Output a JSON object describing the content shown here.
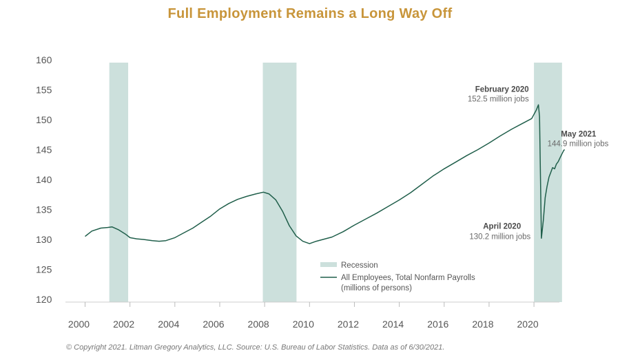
{
  "title": "Full Employment Remains a Long Way Off",
  "footer": "© Copyright 2021. Litman Gregory Analytics, LLC. Source: U.S. Bureau of Labor Statistics. Data as of 6/30/2021.",
  "colors": {
    "title": "#c8953a",
    "line": "#1f5e4a",
    "recession": "#cce0dc"
  },
  "chart_data": {
    "type": "line",
    "title": "Full Employment Remains a Long Way Off",
    "xlabel": "",
    "ylabel": "",
    "xlim": [
      1999.6,
      2021.3
    ],
    "ylim": [
      120,
      160
    ],
    "x_ticks": [
      2000,
      2002,
      2004,
      2006,
      2008,
      2010,
      2012,
      2014,
      2016,
      2018,
      2020
    ],
    "y_ticks": [
      160,
      155,
      150,
      145,
      140,
      135,
      130,
      125,
      120
    ],
    "grid": false,
    "legend_position": "bottom-right",
    "recessions": [
      [
        2001.08,
        2001.92
      ],
      [
        2007.92,
        2009.42
      ],
      [
        2020.0,
        2021.25
      ]
    ],
    "legend": {
      "recession_label": "Recession",
      "series_label": "All Employees, Total Nonfarm Payrolls",
      "series_label_2": "(millions of persons)"
    },
    "series": [
      {
        "name": "All Employees, Total Nonfarm Payrolls (millions of persons)",
        "x": [
          2000.0,
          2000.3,
          2000.7,
          2001.0,
          2001.2,
          2001.5,
          2001.8,
          2002.0,
          2002.3,
          2002.6,
          2003.0,
          2003.3,
          2003.6,
          2004.0,
          2004.4,
          2004.8,
          2005.2,
          2005.6,
          2006.0,
          2006.4,
          2006.8,
          2007.2,
          2007.6,
          2007.95,
          2008.2,
          2008.5,
          2008.8,
          2009.1,
          2009.4,
          2009.7,
          2010.0,
          2010.3,
          2010.6,
          2011.0,
          2011.5,
          2012.0,
          2012.5,
          2013.0,
          2013.5,
          2014.0,
          2014.5,
          2015.0,
          2015.5,
          2016.0,
          2016.5,
          2017.0,
          2017.5,
          2018.0,
          2018.5,
          2019.0,
          2019.5,
          2019.9,
          2020.1,
          2020.2,
          2020.25,
          2020.33,
          2020.42,
          2020.5,
          2020.58,
          2020.67,
          2020.75,
          2020.83,
          2020.92,
          2021.0,
          2021.08,
          2021.17,
          2021.25,
          2021.33,
          2021.37
        ],
        "values": [
          130.5,
          131.4,
          131.9,
          132.0,
          132.1,
          131.6,
          130.9,
          130.3,
          130.1,
          130.0,
          129.8,
          129.7,
          129.8,
          130.3,
          131.1,
          131.9,
          132.9,
          133.9,
          135.1,
          136.0,
          136.7,
          137.2,
          137.6,
          137.9,
          137.6,
          136.6,
          134.7,
          132.3,
          130.6,
          129.7,
          129.3,
          129.7,
          130.0,
          130.4,
          131.3,
          132.4,
          133.4,
          134.4,
          135.5,
          136.6,
          137.8,
          139.2,
          140.6,
          141.8,
          142.9,
          144.0,
          145.0,
          146.1,
          147.3,
          148.4,
          149.4,
          150.2,
          151.6,
          152.5,
          150.5,
          130.2,
          133.3,
          137.0,
          138.8,
          140.4,
          141.2,
          142.0,
          141.8,
          142.6,
          143.0,
          143.7,
          144.3,
          144.9,
          145.0
        ]
      }
    ],
    "annotations": [
      {
        "title": "February 2020",
        "text": "152.5 million jobs",
        "x": 2020.08,
        "y": 152.5
      },
      {
        "title": "May 2021",
        "text": "144.9 million jobs",
        "x": 2021.33,
        "y": 144.9
      },
      {
        "title": "April 2020",
        "text": "130.2 million jobs",
        "x": 2020.25,
        "y": 130.2
      }
    ]
  }
}
